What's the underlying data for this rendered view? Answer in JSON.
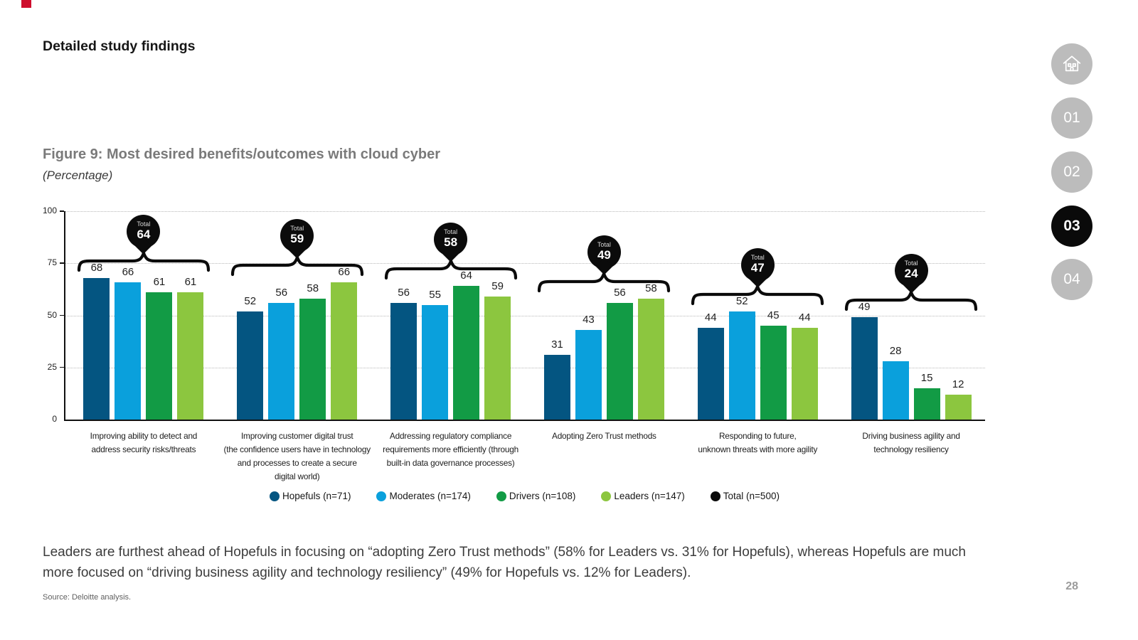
{
  "page": {
    "heading": "Detailed study findings",
    "accent_color": "#ce0e2d",
    "figure_title": "Figure 9: Most desired benefits/outcomes with cloud cyber",
    "figure_subtitle": "(Percentage)",
    "body_text": "Leaders are furthest ahead of Hopefuls in focusing on “adopting Zero Trust methods” (58% for Leaders vs. 31% for Hopefuls), whereas Hopefuls are much more focused on “driving business agility and technology resiliency” (49% for Hopefuls vs. 12% for Leaders).",
    "source_text": "Source: Deloitte analysis.",
    "page_number": "28"
  },
  "sidebar": {
    "home_icon": "home-icon",
    "inactive_color": "#bcbcbc",
    "active_color": "#0a0a0a",
    "items": [
      {
        "label": "01",
        "active": false
      },
      {
        "label": "02",
        "active": false
      },
      {
        "label": "03",
        "active": true
      },
      {
        "label": "04",
        "active": false
      }
    ]
  },
  "chart_data": {
    "type": "bar",
    "title": "Figure 9: Most desired benefits/outcomes with cloud cyber",
    "unit": "Percentage",
    "ylim": [
      0,
      100
    ],
    "yticks": [
      0,
      25,
      50,
      75,
      100
    ],
    "grid": "horizontal-dotted",
    "legend_position": "bottom",
    "categories": [
      "Improving ability to detect and\naddress security risks/threats",
      "Improving customer digital trust\n(the confidence users have in technology\nand processes to create a secure\ndigital world)",
      "Addressing regulatory compliance\nrequirements more efficiently (through\nbuilt-in data governance processes)",
      "Adopting Zero Trust methods",
      "Responding to future,\nunknown threats with more agility",
      "Driving business agility and\ntechnology resiliency"
    ],
    "series": [
      {
        "name": "Hopefuls",
        "legend_label": "Hopefuls (n=71)",
        "color": "#045581",
        "values": [
          68,
          52,
          56,
          31,
          44,
          49
        ]
      },
      {
        "name": "Moderates",
        "legend_label": "Moderates (n=174)",
        "color": "#0aa0dc",
        "values": [
          66,
          56,
          55,
          43,
          52,
          28
        ]
      },
      {
        "name": "Drivers",
        "legend_label": "Drivers (n=108)",
        "color": "#129b45",
        "values": [
          61,
          58,
          64,
          56,
          45,
          15
        ]
      },
      {
        "name": "Leaders",
        "legend_label": "Leaders (n=147)",
        "color": "#8cc63f",
        "values": [
          61,
          66,
          59,
          58,
          44,
          12
        ]
      }
    ],
    "totals": {
      "name": "Total",
      "legend_label": "Total  (n=500)",
      "color": "#0b0b0b",
      "callout_label": "Total",
      "values": [
        64,
        59,
        58,
        49,
        47,
        24
      ]
    }
  }
}
